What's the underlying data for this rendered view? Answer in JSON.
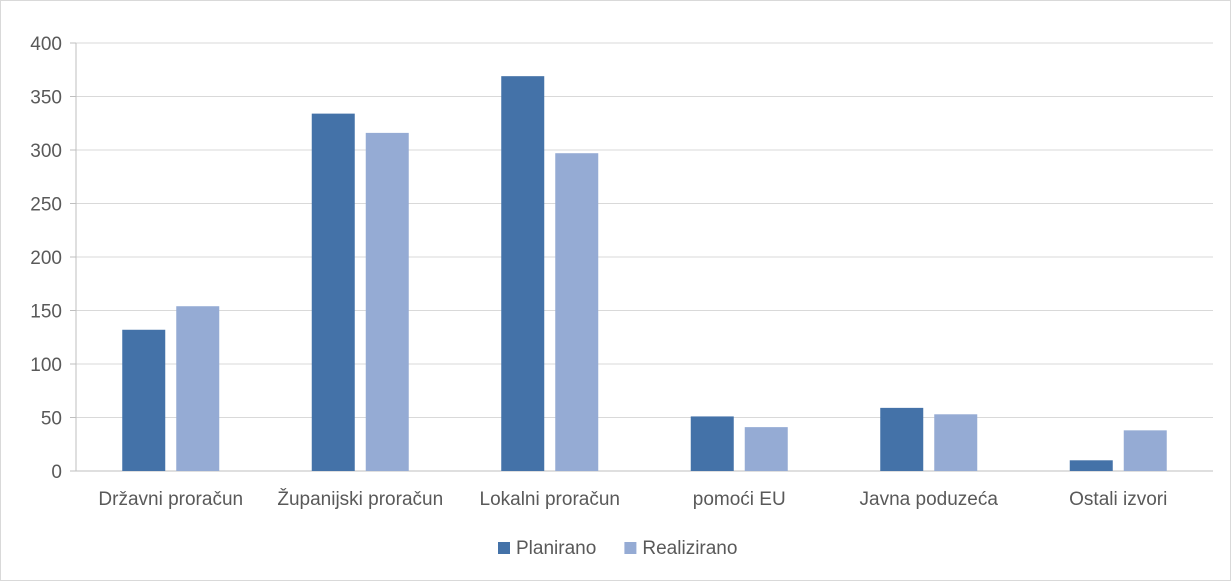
{
  "chart_data": {
    "type": "bar",
    "title": "",
    "xlabel": "",
    "ylabel": "",
    "ylim": [
      0,
      400
    ],
    "yticks": [
      0,
      50,
      100,
      150,
      200,
      250,
      300,
      350,
      400
    ],
    "categories": [
      "Državni proračun",
      "Županijski proračun",
      "Lokalni proračun",
      "pomoći EU",
      "Javna poduzeća",
      "Ostali izvori"
    ],
    "series": [
      {
        "name": "Planirano",
        "color": "#4472a8",
        "values": [
          132,
          334,
          369,
          51,
          59,
          10
        ]
      },
      {
        "name": "Realizirano",
        "color": "#95abd4",
        "values": [
          154,
          316,
          297,
          41,
          53,
          38
        ]
      }
    ],
    "grid": true,
    "legend": "bottom"
  }
}
